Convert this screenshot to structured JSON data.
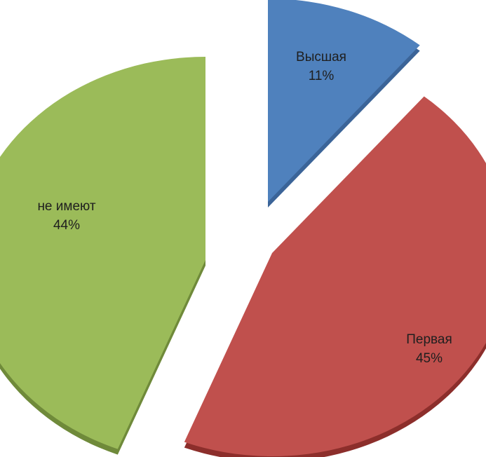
{
  "chart_data": {
    "type": "pie",
    "title": "",
    "slices": [
      {
        "name": "Высшая",
        "percent_label": "11%",
        "value": 11,
        "color": "#4f81bd",
        "side_color": "#3b6498"
      },
      {
        "name": "Первая",
        "percent_label": "45%",
        "value": 45,
        "color": "#c0504d",
        "side_color": "#8c2e2b"
      },
      {
        "name": "не имеют",
        "percent_label": "44%",
        "value": 44,
        "color": "#9bbb59",
        "side_color": "#6f8a3a"
      }
    ],
    "exploded": true,
    "style": "3d-pie",
    "legend": "none",
    "data_labels": "inside"
  }
}
